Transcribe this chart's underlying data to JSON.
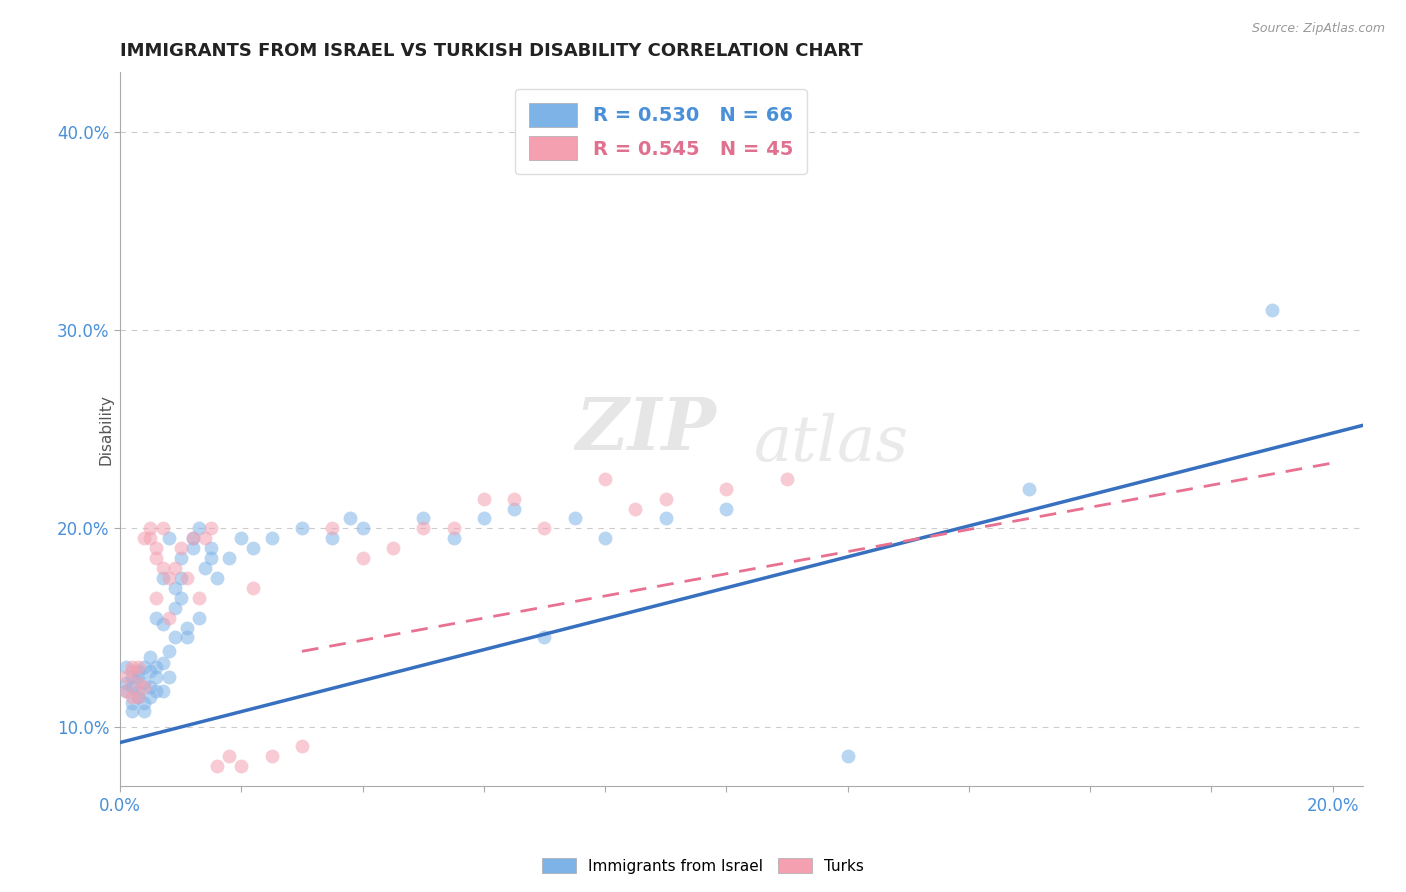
{
  "title": "IMMIGRANTS FROM ISRAEL VS TURKISH DISABILITY CORRELATION CHART",
  "source_text": "Source: ZipAtlas.com",
  "ylabel": "Disability",
  "xlim": [
    0.0,
    0.205
  ],
  "ylim": [
    0.07,
    0.43
  ],
  "xticks": [
    0.0,
    0.02,
    0.04,
    0.06,
    0.08,
    0.1,
    0.12,
    0.14,
    0.16,
    0.18,
    0.2
  ],
  "xtick_labels": [
    "0.0%",
    "",
    "",
    "",
    "",
    "",
    "",
    "",
    "",
    "",
    "20.0%"
  ],
  "yticks": [
    0.1,
    0.2,
    0.3,
    0.4
  ],
  "ytick_labels": [
    "10.0%",
    "20.0%",
    "30.0%",
    "40.0%"
  ],
  "blue_color": "#7EB3E8",
  "pink_color": "#F4A0B0",
  "blue_line_color": "#3870C0",
  "pink_line_color": "#E87090",
  "legend_blue_text": "R = 0.530   N = 66",
  "legend_pink_text": "R = 0.545   N = 45",
  "legend_text_color_blue": "#4A90D9",
  "legend_text_color_pink": "#E07090",
  "blue_scatter": [
    [
      0.001,
      0.13
    ],
    [
      0.001,
      0.122
    ],
    [
      0.001,
      0.118
    ],
    [
      0.002,
      0.125
    ],
    [
      0.002,
      0.12
    ],
    [
      0.002,
      0.112
    ],
    [
      0.002,
      0.108
    ],
    [
      0.003,
      0.128
    ],
    [
      0.003,
      0.115
    ],
    [
      0.003,
      0.118
    ],
    [
      0.003,
      0.125
    ],
    [
      0.004,
      0.13
    ],
    [
      0.004,
      0.112
    ],
    [
      0.004,
      0.122
    ],
    [
      0.004,
      0.108
    ],
    [
      0.005,
      0.135
    ],
    [
      0.005,
      0.115
    ],
    [
      0.005,
      0.128
    ],
    [
      0.005,
      0.12
    ],
    [
      0.006,
      0.118
    ],
    [
      0.006,
      0.13
    ],
    [
      0.006,
      0.125
    ],
    [
      0.006,
      0.155
    ],
    [
      0.007,
      0.132
    ],
    [
      0.007,
      0.175
    ],
    [
      0.007,
      0.118
    ],
    [
      0.007,
      0.152
    ],
    [
      0.008,
      0.195
    ],
    [
      0.008,
      0.138
    ],
    [
      0.008,
      0.125
    ],
    [
      0.009,
      0.145
    ],
    [
      0.009,
      0.16
    ],
    [
      0.009,
      0.17
    ],
    [
      0.01,
      0.185
    ],
    [
      0.01,
      0.165
    ],
    [
      0.01,
      0.175
    ],
    [
      0.011,
      0.145
    ],
    [
      0.011,
      0.15
    ],
    [
      0.012,
      0.19
    ],
    [
      0.012,
      0.195
    ],
    [
      0.013,
      0.2
    ],
    [
      0.013,
      0.155
    ],
    [
      0.014,
      0.18
    ],
    [
      0.015,
      0.19
    ],
    [
      0.015,
      0.185
    ],
    [
      0.016,
      0.175
    ],
    [
      0.018,
      0.185
    ],
    [
      0.02,
      0.195
    ],
    [
      0.022,
      0.19
    ],
    [
      0.025,
      0.195
    ],
    [
      0.03,
      0.2
    ],
    [
      0.035,
      0.195
    ],
    [
      0.038,
      0.205
    ],
    [
      0.04,
      0.2
    ],
    [
      0.05,
      0.205
    ],
    [
      0.055,
      0.195
    ],
    [
      0.06,
      0.205
    ],
    [
      0.065,
      0.21
    ],
    [
      0.07,
      0.145
    ],
    [
      0.075,
      0.205
    ],
    [
      0.08,
      0.195
    ],
    [
      0.09,
      0.205
    ],
    [
      0.1,
      0.21
    ],
    [
      0.12,
      0.085
    ],
    [
      0.15,
      0.22
    ],
    [
      0.19,
      0.31
    ]
  ],
  "pink_scatter": [
    [
      0.001,
      0.125
    ],
    [
      0.001,
      0.118
    ],
    [
      0.002,
      0.13
    ],
    [
      0.002,
      0.115
    ],
    [
      0.002,
      0.128
    ],
    [
      0.003,
      0.122
    ],
    [
      0.003,
      0.13
    ],
    [
      0.003,
      0.115
    ],
    [
      0.004,
      0.12
    ],
    [
      0.004,
      0.195
    ],
    [
      0.005,
      0.195
    ],
    [
      0.005,
      0.2
    ],
    [
      0.006,
      0.19
    ],
    [
      0.006,
      0.185
    ],
    [
      0.006,
      0.165
    ],
    [
      0.007,
      0.2
    ],
    [
      0.007,
      0.18
    ],
    [
      0.008,
      0.175
    ],
    [
      0.008,
      0.155
    ],
    [
      0.009,
      0.18
    ],
    [
      0.01,
      0.19
    ],
    [
      0.011,
      0.175
    ],
    [
      0.012,
      0.195
    ],
    [
      0.013,
      0.165
    ],
    [
      0.014,
      0.195
    ],
    [
      0.015,
      0.2
    ],
    [
      0.016,
      0.08
    ],
    [
      0.018,
      0.085
    ],
    [
      0.02,
      0.08
    ],
    [
      0.022,
      0.17
    ],
    [
      0.025,
      0.085
    ],
    [
      0.03,
      0.09
    ],
    [
      0.035,
      0.2
    ],
    [
      0.04,
      0.185
    ],
    [
      0.045,
      0.19
    ],
    [
      0.05,
      0.2
    ],
    [
      0.055,
      0.2
    ],
    [
      0.06,
      0.215
    ],
    [
      0.065,
      0.215
    ],
    [
      0.07,
      0.2
    ],
    [
      0.08,
      0.225
    ],
    [
      0.085,
      0.21
    ],
    [
      0.09,
      0.215
    ],
    [
      0.1,
      0.22
    ],
    [
      0.11,
      0.225
    ]
  ],
  "blue_line_x": [
    0.0,
    0.205
  ],
  "blue_line_y": [
    0.092,
    0.252
  ],
  "pink_line_x": [
    0.03,
    0.2
  ],
  "pink_line_y": [
    0.138,
    0.233
  ],
  "watermark_zip": "ZIP",
  "watermark_atlas": "atlas",
  "bg_color": "#FFFFFF",
  "scatter_size": 100,
  "scatter_alpha": 0.55,
  "title_fontsize": 13,
  "tick_label_color": "#4A90D9",
  "grid_color": "#CCCCCC"
}
